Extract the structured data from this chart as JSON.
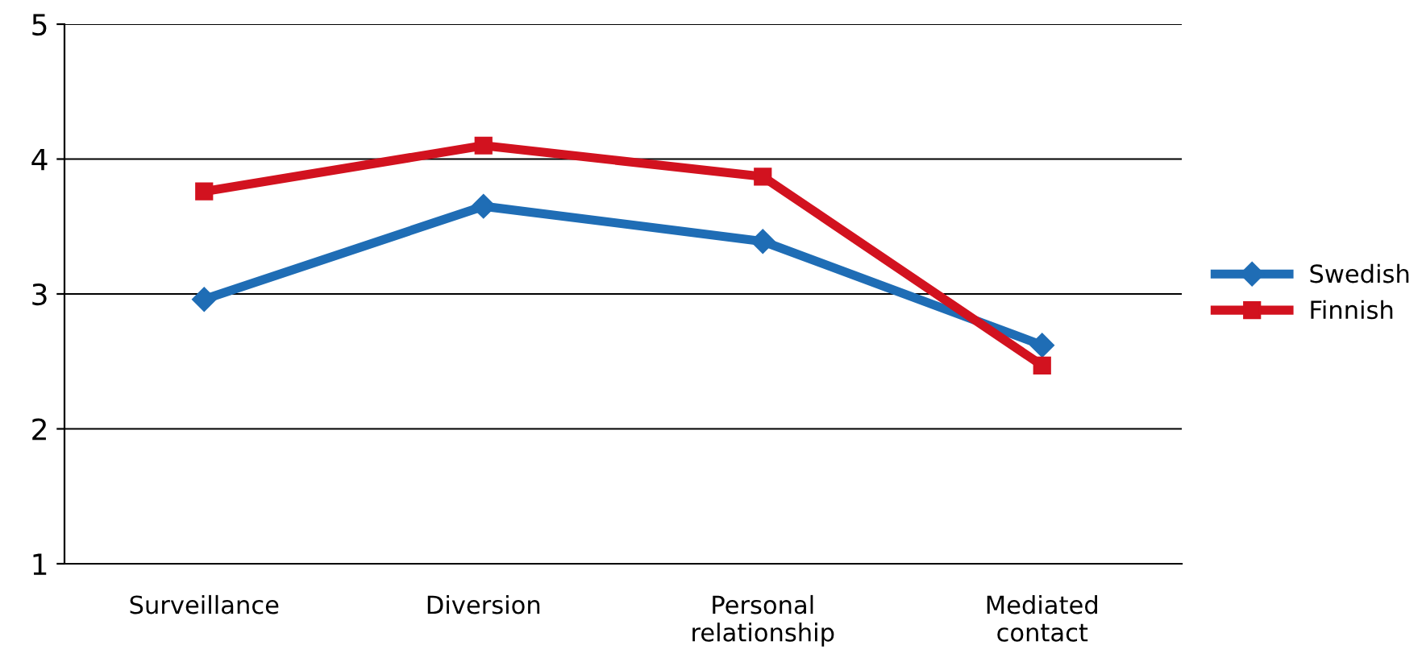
{
  "chart_data": {
    "type": "line",
    "categories": [
      "Surveillance",
      "Diversion",
      "Personal\nrelationship",
      "Mediated\ncontact"
    ],
    "series": [
      {
        "name": "Swedish",
        "color": "#1f6db5",
        "marker": "diamond",
        "values": [
          2.96,
          3.65,
          3.39,
          2.62
        ]
      },
      {
        "name": "Finnish",
        "color": "#d2121f",
        "marker": "square",
        "values": [
          3.76,
          4.1,
          3.87,
          2.47
        ]
      }
    ],
    "ylim": [
      1,
      5
    ],
    "yticks": [
      1,
      2,
      3,
      4,
      5
    ],
    "grid": "y",
    "legend": "right",
    "line_style": "solid"
  }
}
